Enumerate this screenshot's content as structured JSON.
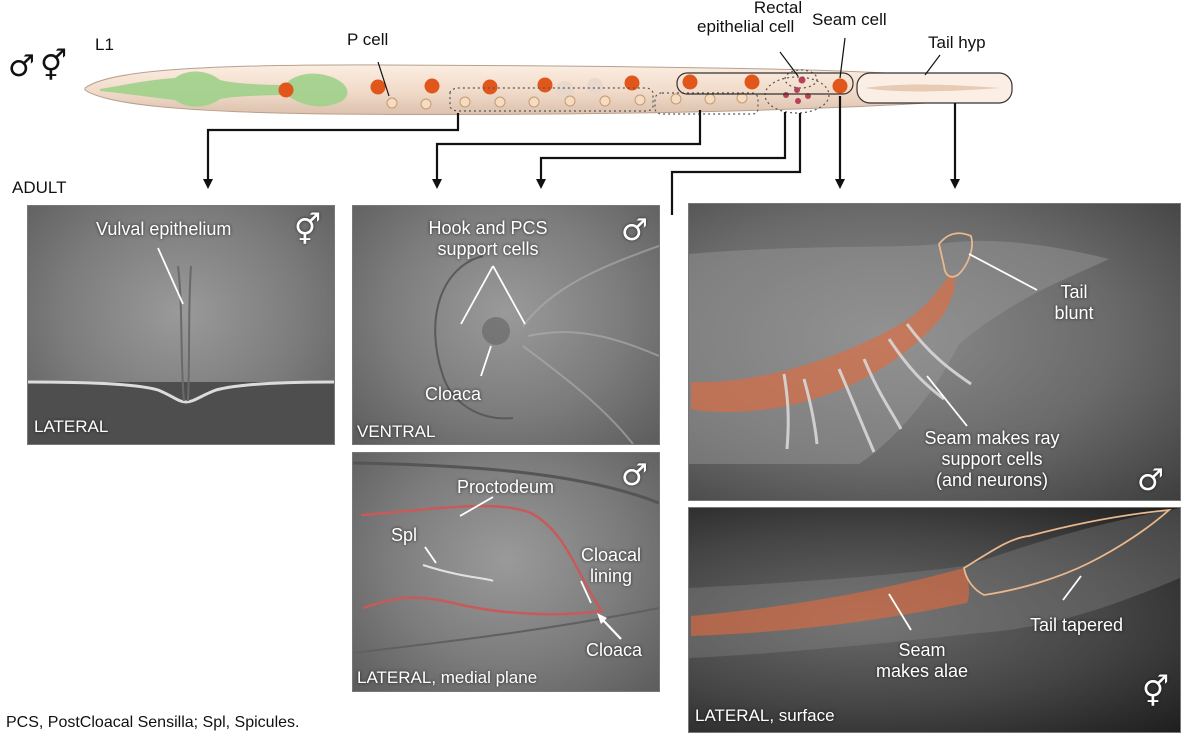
{
  "top": {
    "stage": "L1",
    "symbols": {
      "male": "♂",
      "herm": "⚥"
    },
    "labels": {
      "p_cell": "P cell",
      "rectal_line1": "Rectal",
      "rectal_line2": "epithelial cell",
      "seam_cell": "Seam cell",
      "tail_hyp": "Tail hyp"
    }
  },
  "adult_label": "ADULT",
  "panels": {
    "vulva": {
      "label": "Vulval epithelium",
      "view": "LATERAL",
      "symbol": "⚥"
    },
    "ventral": {
      "label_line1": "Hook and PCS",
      "label_line2": "support cells",
      "cloaca": "Cloaca",
      "view": "VENTRAL",
      "symbol": "♂"
    },
    "proctodeum": {
      "proctodeum": "Proctodeum",
      "spl": "Spl",
      "lining_line1": "Cloacal",
      "lining_line2": "lining",
      "cloaca": "Cloaca",
      "view": "LATERAL, medial plane",
      "symbol": "♂"
    },
    "male_tail": {
      "tail_line1": "Tail",
      "tail_line2": "blunt",
      "seam_line1": "Seam makes ray",
      "seam_line2": "support cells",
      "seam_line3": "(and neurons)",
      "symbol": "♂"
    },
    "herm_tail": {
      "tapered": "Tail tapered",
      "seam_line1": "Seam",
      "seam_line2": "makes alae",
      "view": "LATERAL, surface",
      "symbol": "⚥"
    }
  },
  "footnote": "PCS, PostCloacal Sensilla; Spl, Spicules.",
  "colors": {
    "seam_orange": "#e0561b",
    "pharynx_green": "#9fd08a",
    "body_fill": "#f3e0d0",
    "p_cell_fill": "#f6dcc0",
    "rectal_fill": "#b8405a",
    "overlay_orange": "#e4693c",
    "outline_tan": "#e9b88e"
  }
}
